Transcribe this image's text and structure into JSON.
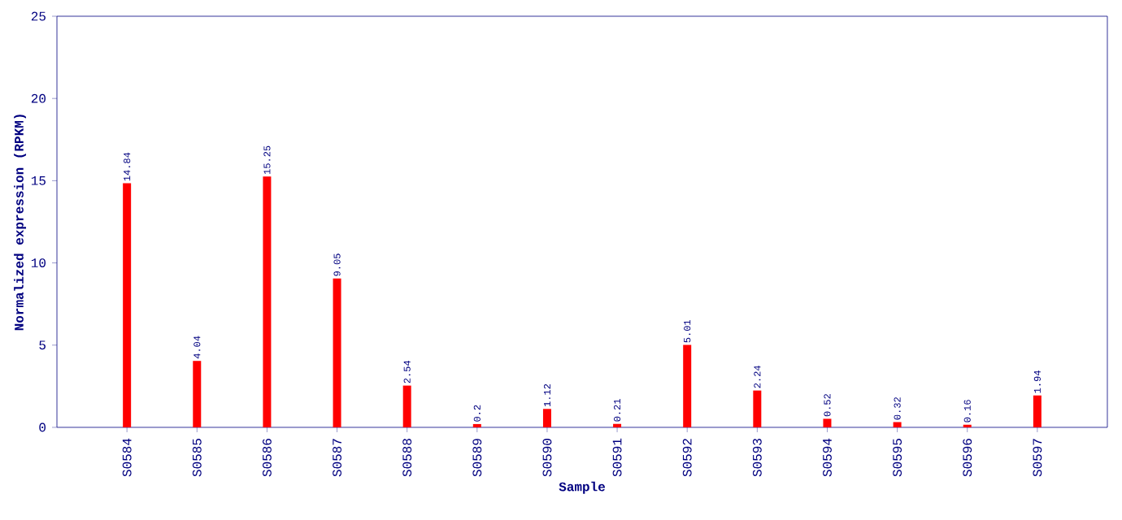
{
  "chart_data": {
    "type": "bar",
    "xlabel": "Sample",
    "ylabel": "Normalized expression (RPKM)",
    "categories": [
      "S0584",
      "S0585",
      "S0586",
      "S0587",
      "S0588",
      "S0589",
      "S0590",
      "S0591",
      "S0592",
      "S0593",
      "S0594",
      "S0595",
      "S0596",
      "S0597"
    ],
    "values": [
      14.84,
      4.04,
      15.25,
      9.05,
      2.54,
      0.2,
      1.12,
      0.21,
      5.01,
      2.24,
      0.52,
      0.32,
      0.16,
      1.94
    ],
    "color": "#ff0000",
    "ylim": [
      0,
      25
    ],
    "yticks": [
      0,
      5,
      10,
      15,
      20,
      25
    ],
    "data_labels": true,
    "grid": false
  }
}
